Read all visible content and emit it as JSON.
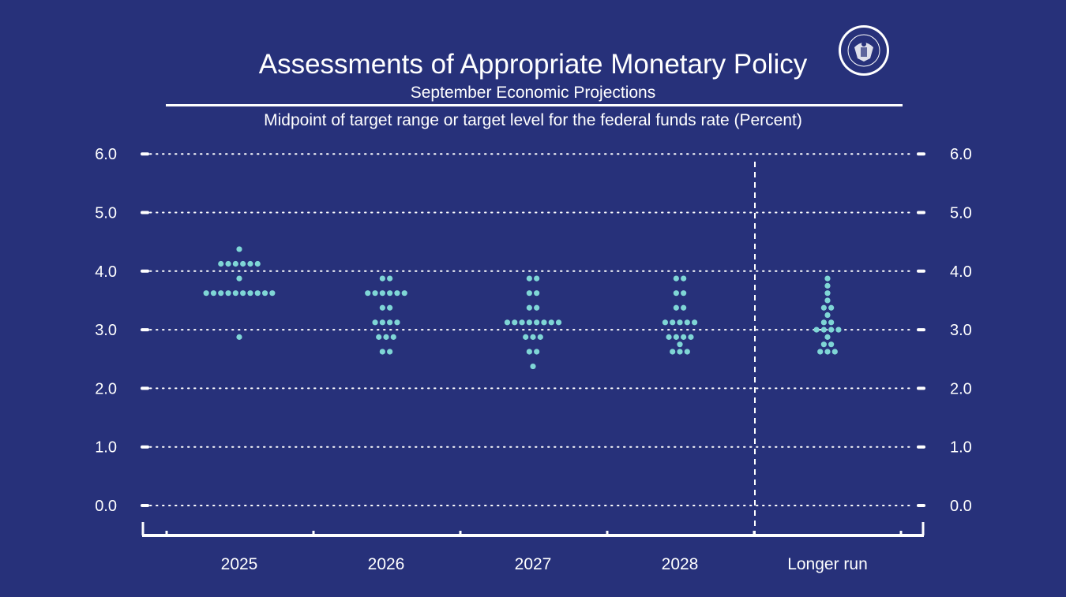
{
  "colors": {
    "background": "#27317a",
    "dot": "#7fd6d6",
    "text": "#ffffff"
  },
  "seal": {
    "name": "federal-reserve-seal-icon",
    "text": "UNITED STATES FEDERAL RESERVE SYSTEM"
  },
  "chart_data": {
    "type": "scatter",
    "title": "Assessments of Appropriate Monetary Policy",
    "subtitle": "September Economic Projections",
    "ylabel": "Midpoint of target range or target level for the federal funds rate (Percent)",
    "ylim": [
      -0.5,
      6.0
    ],
    "yticks": [
      "0.0",
      "1.0",
      "2.0",
      "3.0",
      "4.0",
      "5.0",
      "6.0"
    ],
    "grid": true,
    "categories": [
      "2025",
      "2026",
      "2027",
      "2028",
      "Longer run"
    ],
    "series": [
      {
        "category": "2025",
        "points": [
          {
            "y": 4.375,
            "count": 1
          },
          {
            "y": 4.125,
            "count": 6
          },
          {
            "y": 3.875,
            "count": 1
          },
          {
            "y": 3.625,
            "count": 10
          },
          {
            "y": 2.875,
            "count": 1
          }
        ]
      },
      {
        "category": "2026",
        "points": [
          {
            "y": 3.875,
            "count": 2
          },
          {
            "y": 3.625,
            "count": 6
          },
          {
            "y": 3.375,
            "count": 2
          },
          {
            "y": 3.125,
            "count": 4
          },
          {
            "y": 2.875,
            "count": 3
          },
          {
            "y": 2.625,
            "count": 2
          }
        ]
      },
      {
        "category": "2027",
        "points": [
          {
            "y": 3.875,
            "count": 2
          },
          {
            "y": 3.625,
            "count": 2
          },
          {
            "y": 3.375,
            "count": 2
          },
          {
            "y": 3.125,
            "count": 8
          },
          {
            "y": 2.875,
            "count": 3
          },
          {
            "y": 2.625,
            "count": 2
          },
          {
            "y": 2.375,
            "count": 1
          }
        ]
      },
      {
        "category": "2028",
        "points": [
          {
            "y": 3.875,
            "count": 2
          },
          {
            "y": 3.625,
            "count": 2
          },
          {
            "y": 3.375,
            "count": 2
          },
          {
            "y": 3.125,
            "count": 5
          },
          {
            "y": 2.875,
            "count": 4
          },
          {
            "y": 2.75,
            "count": 1
          },
          {
            "y": 2.625,
            "count": 3
          }
        ]
      },
      {
        "category": "Longer run",
        "points": [
          {
            "y": 3.875,
            "count": 1
          },
          {
            "y": 3.75,
            "count": 1
          },
          {
            "y": 3.625,
            "count": 1
          },
          {
            "y": 3.5,
            "count": 1
          },
          {
            "y": 3.375,
            "count": 2
          },
          {
            "y": 3.25,
            "count": 1
          },
          {
            "y": 3.125,
            "count": 2
          },
          {
            "y": 3.0,
            "count": 4
          },
          {
            "y": 2.875,
            "count": 1
          },
          {
            "y": 2.75,
            "count": 2
          },
          {
            "y": 2.625,
            "count": 3
          }
        ]
      }
    ]
  }
}
